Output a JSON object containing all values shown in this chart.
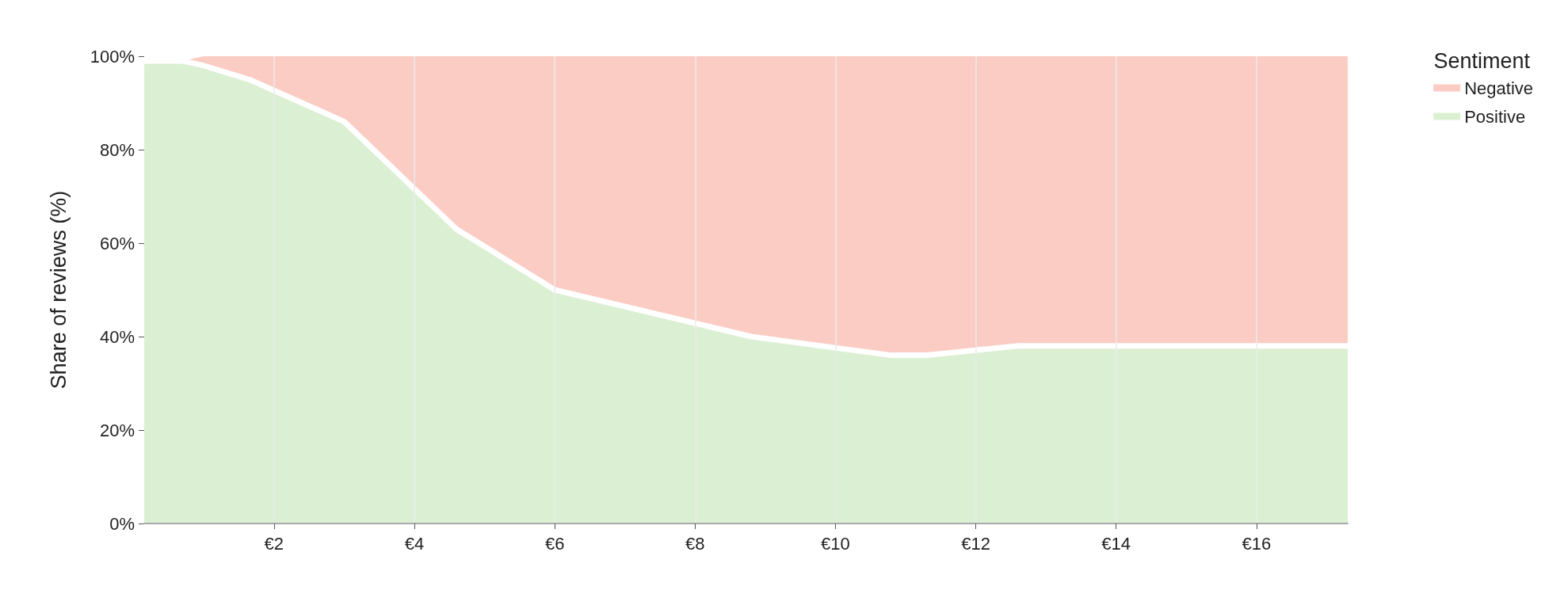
{
  "chart_data": {
    "type": "area",
    "stacked": true,
    "ylabel": "Share of reviews (%)",
    "legend_title": "Sentiment",
    "legend": "top right",
    "grid": "x",
    "x": [
      0.15,
      0.7,
      1.0,
      1.65,
      2.7,
      3.0,
      4.6,
      6.0,
      8.8,
      10.8,
      11.3,
      12.6,
      17.3
    ],
    "series": [
      {
        "name": "Positive",
        "color": "#dbf0d3",
        "values": [
          99,
          99,
          98,
          95,
          88,
          86,
          63,
          50,
          40,
          36,
          36,
          38,
          38
        ]
      },
      {
        "name": "Negative",
        "color": "#fbccc4",
        "values": [
          0,
          0,
          2,
          5,
          12,
          14,
          37,
          50,
          60,
          64,
          64,
          62,
          62
        ]
      }
    ],
    "xlim": [
      0.15,
      17.3
    ],
    "xticks": [
      {
        "value": 2,
        "label": "€2"
      },
      {
        "value": 4,
        "label": "€4"
      },
      {
        "value": 6,
        "label": "€6"
      },
      {
        "value": 8,
        "label": "€8"
      },
      {
        "value": 10,
        "label": "€10"
      },
      {
        "value": 12,
        "label": "€12"
      },
      {
        "value": 14,
        "label": "€14"
      },
      {
        "value": 16,
        "label": "€16"
      }
    ],
    "ylim": [
      0,
      100
    ],
    "yticks": [
      {
        "value": 0,
        "label": "0%"
      },
      {
        "value": 20,
        "label": "20%"
      },
      {
        "value": 40,
        "label": "40%"
      },
      {
        "value": 60,
        "label": "60%"
      },
      {
        "value": 80,
        "label": "80%"
      },
      {
        "value": 100,
        "label": "100%"
      }
    ]
  }
}
